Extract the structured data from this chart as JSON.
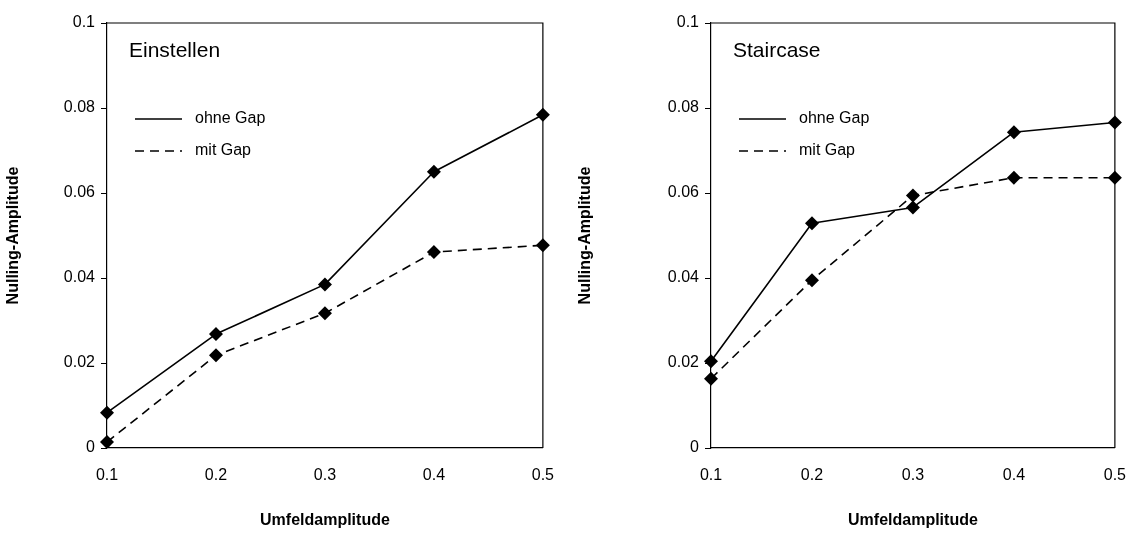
{
  "chart_data": [
    {
      "type": "line",
      "title": "Einstellen",
      "xlabel": "Umfeldamplitude",
      "ylabel": "Nulling-Amplitude",
      "categories": [
        "0.1",
        "0.2",
        "0.3",
        "0.4",
        "0.5"
      ],
      "ylim": [
        0,
        0.1
      ],
      "yticks": [
        0,
        0.02,
        0.04,
        0.06,
        0.08,
        0.1
      ],
      "legend": "top left",
      "marker": "diamond",
      "series": [
        {
          "name": "ohne Gap",
          "color": "#000000",
          "line_style": "solid",
          "values": [
            0.0083,
            0.0268,
            0.0385,
            0.065,
            0.0784
          ]
        },
        {
          "name": "mit Gap",
          "color": "#000000",
          "line_style": "dashed",
          "values": [
            0.0014,
            0.0218,
            0.0317,
            0.0461,
            0.0477
          ]
        }
      ]
    },
    {
      "type": "line",
      "title": "Staircase",
      "xlabel": "Umfeldamplitude",
      "ylabel": "Nulling-Amplitude",
      "categories": [
        "0.1",
        "0.2",
        "0.3",
        "0.4",
        "0.5"
      ],
      "ylim": [
        0,
        0.1
      ],
      "yticks": [
        0,
        0.02,
        0.04,
        0.06,
        0.08,
        0.1
      ],
      "legend": "top left",
      "marker": "diamond",
      "series": [
        {
          "name": "ohne Gap",
          "color": "#000000",
          "line_style": "solid",
          "values": [
            0.0204,
            0.0529,
            0.0566,
            0.0743,
            0.0766
          ]
        },
        {
          "name": "mit Gap",
          "color": "#000000",
          "line_style": "dashed",
          "values": [
            0.0163,
            0.0395,
            0.0594,
            0.0636,
            0.0636
          ]
        }
      ]
    }
  ]
}
